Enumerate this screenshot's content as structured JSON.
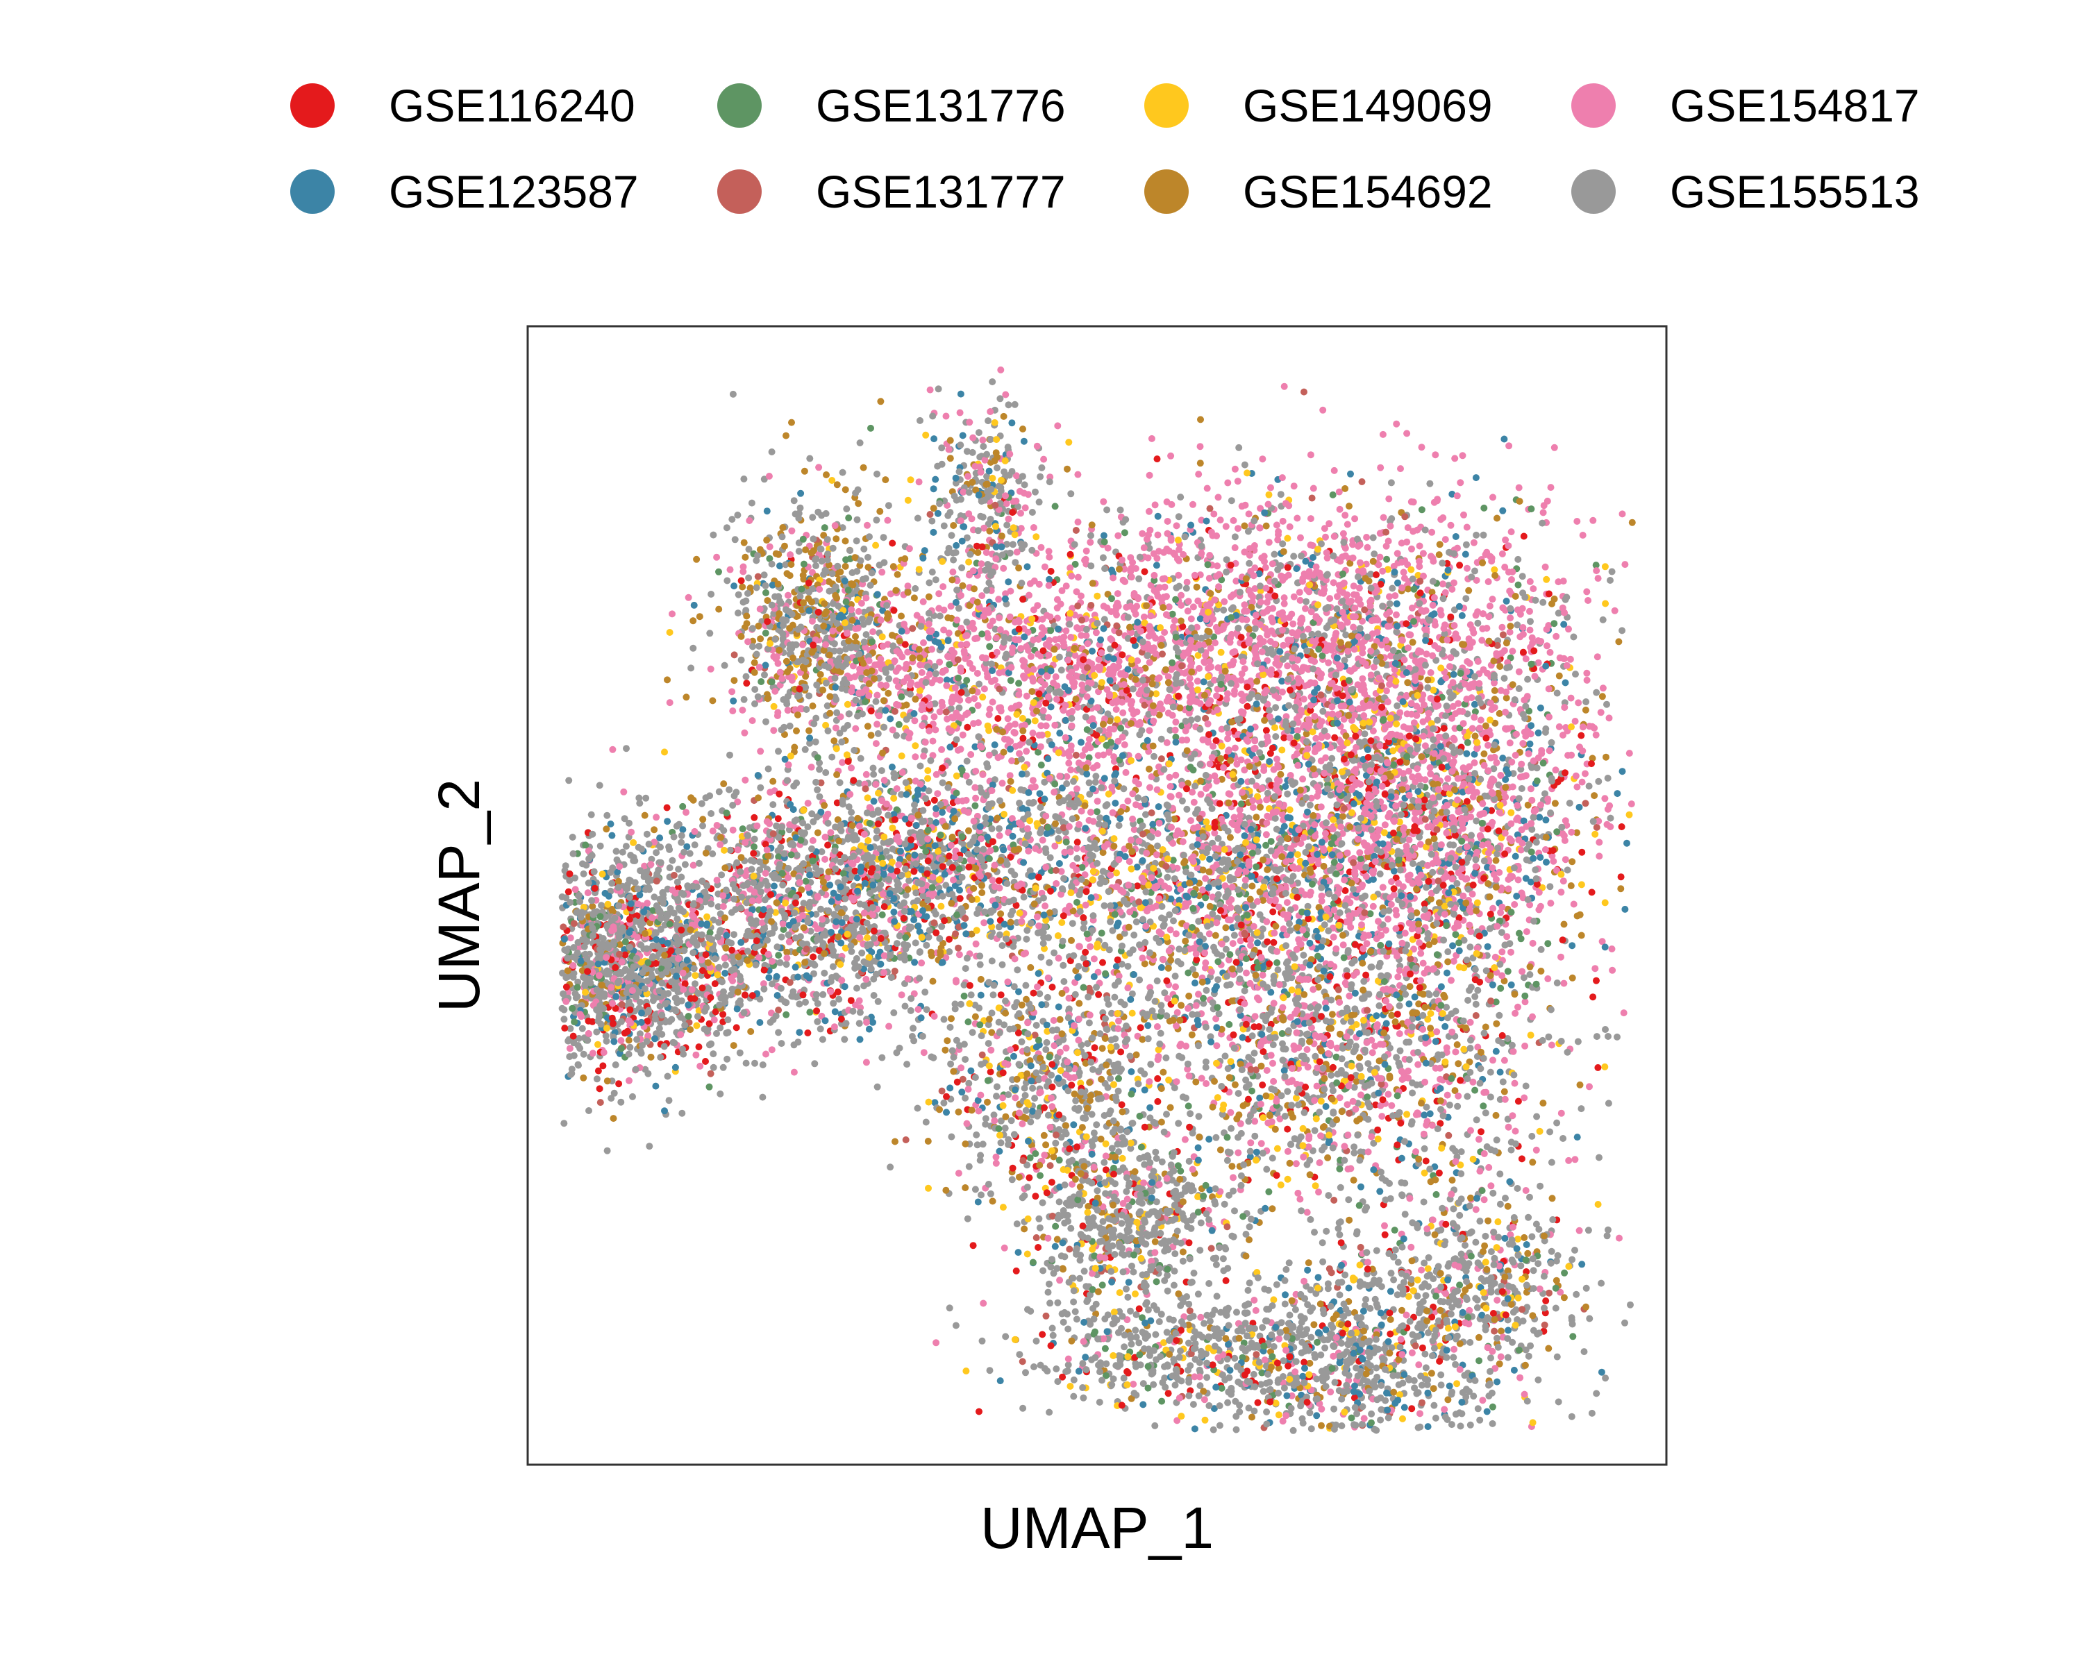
{
  "chart_data": {
    "type": "scatter",
    "title": "",
    "xlabel": "UMAP_1",
    "ylabel": "UMAP_2",
    "xlim": [
      -10,
      10
    ],
    "ylim": [
      -10,
      10
    ],
    "grid": false,
    "ticks": false,
    "legend_position": "top",
    "series": [
      {
        "name": "GSE116240",
        "color": "#E41A1C"
      },
      {
        "name": "GSE123587",
        "color": "#3C84A6"
      },
      {
        "name": "GSE131776",
        "color": "#5E9563"
      },
      {
        "name": "GSE131777",
        "color": "#C4605A"
      },
      {
        "name": "GSE149069",
        "color": "#FFC81E"
      },
      {
        "name": "GSE154692",
        "color": "#BD862A"
      },
      {
        "name": "GSE154817",
        "color": "#EE7FAE"
      },
      {
        "name": "GSE155513",
        "color": "#999999"
      }
    ],
    "regions": [
      {
        "center": [
          -8.4,
          -1.2
        ],
        "spread": [
          1.0,
          1.0
        ],
        "share": 0.09,
        "mix": [
          1,
          1,
          0.4,
          0.2,
          0.3,
          0.6,
          1.2,
          6
        ]
      },
      {
        "center": [
          -5.5,
          -0.3
        ],
        "spread": [
          1.6,
          1.1
        ],
        "share": 0.09,
        "mix": [
          1,
          1,
          0.4,
          0.2,
          0.3,
          0.8,
          2,
          6
        ]
      },
      {
        "center": [
          -2.8,
          0.6
        ],
        "spread": [
          1.4,
          0.9
        ],
        "share": 0.06,
        "mix": [
          0.6,
          1.5,
          0.5,
          0.2,
          0.6,
          0.8,
          1.6,
          4
        ]
      },
      {
        "center": [
          -5.0,
          4.8
        ],
        "spread": [
          0.8,
          1.1
        ],
        "share": 0.05,
        "mix": [
          0.2,
          0.5,
          0.4,
          0.1,
          0.3,
          3,
          1.2,
          4
        ]
      },
      {
        "center": [
          -2.0,
          6.9
        ],
        "spread": [
          0.5,
          0.9
        ],
        "share": 0.02,
        "mix": [
          0.2,
          0.6,
          0.3,
          0.1,
          0.6,
          0.6,
          1.6,
          4
        ]
      },
      {
        "center": [
          -1.6,
          3.8
        ],
        "spread": [
          2.0,
          0.9
        ],
        "share": 0.07,
        "mix": [
          0.4,
          0.6,
          0.4,
          0.2,
          0.6,
          0.8,
          6,
          1.2
        ]
      },
      {
        "center": [
          3.5,
          4.6
        ],
        "spread": [
          2.6,
          1.3
        ],
        "share": 0.14,
        "mix": [
          0.5,
          0.9,
          0.4,
          0.2,
          0.5,
          0.9,
          7,
          2
        ]
      },
      {
        "center": [
          5.5,
          1.5
        ],
        "spread": [
          1.7,
          1.4
        ],
        "share": 0.13,
        "mix": [
          0.7,
          1.0,
          0.5,
          0.2,
          0.6,
          0.9,
          5,
          2.5
        ]
      },
      {
        "center": [
          1.8,
          0.4
        ],
        "spread": [
          2.0,
          1.3
        ],
        "share": 0.1,
        "mix": [
          0.6,
          1.1,
          0.5,
          0.2,
          0.7,
          1.0,
          3,
          3
        ]
      },
      {
        "center": [
          4.3,
          -2.7
        ],
        "spread": [
          2.0,
          1.4
        ],
        "share": 0.1,
        "mix": [
          0.7,
          0.9,
          0.5,
          0.2,
          0.6,
          1.6,
          3,
          4
        ]
      },
      {
        "center": [
          -0.9,
          -3.2
        ],
        "spread": [
          1.0,
          1.1
        ],
        "share": 0.04,
        "mix": [
          0.5,
          0.6,
          0.5,
          0.2,
          0.5,
          1.2,
          1.0,
          4
        ]
      },
      {
        "center": [
          0.6,
          -5.8
        ],
        "spread": [
          0.9,
          0.8
        ],
        "share": 0.04,
        "mix": [
          0.5,
          0.5,
          0.5,
          0.2,
          0.6,
          0.8,
          0.8,
          6
        ]
      },
      {
        "center": [
          1.6,
          -8.1
        ],
        "spread": [
          1.4,
          0.5
        ],
        "share": 0.03,
        "mix": [
          0.6,
          0.6,
          0.4,
          0.2,
          0.4,
          0.6,
          0.5,
          6
        ]
      },
      {
        "center": [
          4.3,
          -8.3
        ],
        "spread": [
          1.2,
          0.9
        ],
        "share": 0.04,
        "mix": [
          0.4,
          1.2,
          0.4,
          0.2,
          0.5,
          0.8,
          0.8,
          6
        ]
      },
      {
        "center": [
          6.4,
          -6.9
        ],
        "spread": [
          1.1,
          1.0
        ],
        "share": 0.04,
        "mix": [
          0.5,
          0.8,
          0.4,
          0.2,
          0.5,
          0.8,
          1.2,
          5
        ]
      }
    ]
  }
}
